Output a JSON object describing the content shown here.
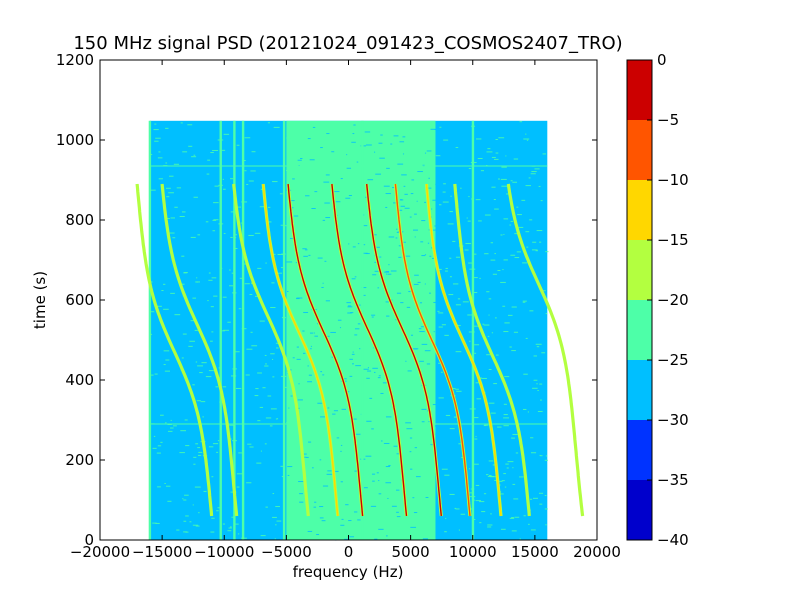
{
  "chart_data": {
    "type": "heatmap",
    "title": "150 MHz signal PSD (20121024_091423_COSMOS2407_TRO)",
    "xlabel": "frequency (Hz)",
    "ylabel": "time (s)",
    "xlim": [
      -20000,
      20000
    ],
    "ylim": [
      0,
      1200
    ],
    "xticks": [
      -20000,
      -15000,
      -10000,
      -5000,
      0,
      5000,
      10000,
      15000,
      20000
    ],
    "xtick_labels": [
      "−20000",
      "−15000",
      "−10000",
      "−5000",
      "0",
      "5000",
      "10000",
      "15000",
      "20000"
    ],
    "yticks": [
      0,
      200,
      400,
      600,
      800,
      1000,
      1200
    ],
    "ytick_labels": [
      "0",
      "200",
      "400",
      "600",
      "800",
      "1000",
      "1200"
    ],
    "data_extent": {
      "x": [
        -16000,
        16000
      ],
      "y": [
        0,
        1048
      ]
    },
    "background_level_db": -27,
    "central_band": {
      "x": [
        -5000,
        7000
      ],
      "level_db": -23
    },
    "colorbar": {
      "levels": [
        -40,
        -35,
        -30,
        -25,
        -20,
        -15,
        -10,
        -5,
        0
      ],
      "tick_labels": [
        "−40",
        "−35",
        "−30",
        "−25",
        "−20",
        "−15",
        "−10",
        "−5",
        "0"
      ],
      "colors": [
        "#0000cc",
        "#0033ff",
        "#00bfff",
        "#4dffa8",
        "#b3ff40",
        "#ffd700",
        "#ff5500",
        "#cc0000"
      ]
    },
    "vertical_lines_hz": [
      -16000,
      -10300,
      -9200,
      -8500,
      -5200,
      1100,
      10000
    ],
    "horizontal_lines_s": [
      290,
      935
    ],
    "tracks": [
      {
        "center_hz": -14000,
        "mid_s": 470,
        "peak_db": -18
      },
      {
        "center_hz": -12200,
        "mid_s": 540,
        "peak_db": -18
      },
      {
        "center_hz": -6500,
        "mid_s": 560,
        "peak_db": -18
      },
      {
        "center_hz": -4000,
        "mid_s": 520,
        "peak_db": -15
      },
      {
        "center_hz": -2000,
        "mid_s": 520,
        "peak_db": -5
      },
      {
        "center_hz": 1500,
        "mid_s": 530,
        "peak_db": -5
      },
      {
        "center_hz": 4300,
        "mid_s": 530,
        "peak_db": -5
      },
      {
        "center_hz": 6700,
        "mid_s": 500,
        "peak_db": -8
      },
      {
        "center_hz": 9200,
        "mid_s": 500,
        "peak_db": -15
      },
      {
        "center_hz": 11600,
        "mid_s": 460,
        "peak_db": -18
      },
      {
        "center_hz": 15300,
        "mid_s": 640,
        "peak_db": -18
      }
    ]
  }
}
